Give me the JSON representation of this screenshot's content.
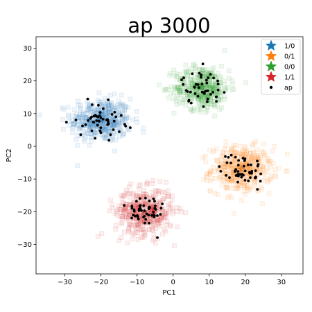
{
  "chart_data": {
    "type": "scatter",
    "title": "ap 3000",
    "xlabel": "PC1",
    "ylabel": "PC2",
    "xlim": [
      -38,
      36
    ],
    "ylim": [
      -39,
      33.5
    ],
    "xticks": [
      -30,
      -20,
      -10,
      0,
      10,
      20,
      30
    ],
    "yticks": [
      -30,
      -20,
      -10,
      0,
      10,
      20,
      30
    ],
    "grid": false,
    "legend_position": "top-right",
    "legend": [
      {
        "label": "1/0",
        "marker": "star",
        "color": "#1f77b4"
      },
      {
        "label": "0/1",
        "marker": "star",
        "color": "#ff7f0e"
      },
      {
        "label": "0/0",
        "marker": "star",
        "color": "#2ca02c"
      },
      {
        "label": "1/1",
        "marker": "star",
        "color": "#d62728"
      },
      {
        "label": "ap",
        "marker": "dot",
        "color": "#000000"
      }
    ],
    "clusters": [
      {
        "name": "1/0",
        "color": "#1f77b4",
        "center": [
          -20,
          8
        ],
        "spread": [
          4.2,
          3.3
        ],
        "count": 420
      },
      {
        "name": "0/1",
        "color": "#ff7f0e",
        "center": [
          19,
          -7
        ],
        "spread": [
          4.2,
          3.5
        ],
        "count": 420
      },
      {
        "name": "0/0",
        "color": "#2ca02c",
        "center": [
          8,
          18
        ],
        "spread": [
          3.8,
          3.3
        ],
        "count": 420
      },
      {
        "name": "1/1",
        "color": "#d62728",
        "center": [
          -8,
          -20
        ],
        "spread": [
          4.0,
          3.6
        ],
        "count": 420
      }
    ],
    "ap_points": [
      {
        "cluster": "1/0",
        "count": 50,
        "spread": [
          3.2,
          2.6
        ]
      },
      {
        "cluster": "0/1",
        "count": 50,
        "spread": [
          3.0,
          2.5
        ]
      },
      {
        "cluster": "0/0",
        "count": 45,
        "spread": [
          2.8,
          2.5
        ]
      },
      {
        "cluster": "1/1",
        "count": 50,
        "spread": [
          2.8,
          3.0
        ]
      }
    ]
  }
}
